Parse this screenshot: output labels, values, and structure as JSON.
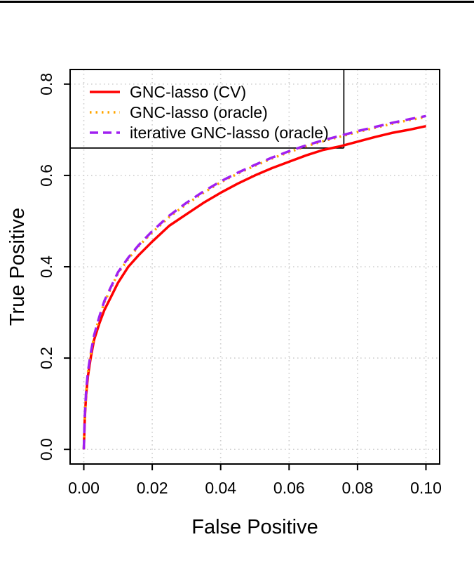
{
  "page": {
    "background": "#ffffff"
  },
  "top_rule": {
    "visible": true,
    "color": "#000000"
  },
  "chart_data": {
    "type": "line",
    "title": "",
    "xlabel": "False Positive",
    "ylabel": "True Positive",
    "xlim": [
      0,
      0.1
    ],
    "ylim": [
      0,
      0.8
    ],
    "x_ticks": {
      "values": [
        0,
        0.02,
        0.04,
        0.06,
        0.08,
        0.1
      ],
      "labels": [
        "0.00",
        "0.02",
        "0.04",
        "0.06",
        "0.08",
        "0.10"
      ]
    },
    "y_ticks": {
      "values": [
        0,
        0.2,
        0.4,
        0.6,
        0.8
      ],
      "labels": [
        "0.0",
        "0.2",
        "0.4",
        "0.6",
        "0.8"
      ]
    },
    "grid": {
      "show": true,
      "color": "#cfcfcf",
      "style": "dotted"
    },
    "axis_color": "#000000",
    "x": [
      0,
      0.0003,
      0.0007,
      0.0012,
      0.002,
      0.003,
      0.0045,
      0.006,
      0.008,
      0.01,
      0.013,
      0.016,
      0.02,
      0.025,
      0.03,
      0.035,
      0.04,
      0.045,
      0.05,
      0.055,
      0.06,
      0.065,
      0.07,
      0.075,
      0.08,
      0.085,
      0.09,
      0.095,
      0.1
    ],
    "series": [
      {
        "name": "GNC-lasso (CV)",
        "color": "#ff0000",
        "dash": "solid",
        "width": 3.5,
        "values": [
          0,
          0.07,
          0.12,
          0.16,
          0.2,
          0.24,
          0.275,
          0.305,
          0.335,
          0.365,
          0.4,
          0.425,
          0.455,
          0.49,
          0.515,
          0.54,
          0.562,
          0.582,
          0.6,
          0.616,
          0.63,
          0.644,
          0.656,
          0.664,
          0.674,
          0.684,
          0.693,
          0.7,
          0.708
        ]
      },
      {
        "name": "GNC-lasso (oracle)",
        "color": "#ffa500",
        "dash": "dotted",
        "width": 3.5,
        "values": [
          0,
          0.073,
          0.128,
          0.168,
          0.208,
          0.248,
          0.288,
          0.322,
          0.354,
          0.386,
          0.417,
          0.445,
          0.475,
          0.509,
          0.537,
          0.562,
          0.585,
          0.604,
          0.621,
          0.637,
          0.651,
          0.664,
          0.675,
          0.685,
          0.695,
          0.704,
          0.713,
          0.721,
          0.728
        ]
      },
      {
        "name": "iterative GNC-lasso (oracle)",
        "color": "#a020f0",
        "dash": "dashed",
        "width": 3.5,
        "values": [
          0,
          0.075,
          0.13,
          0.17,
          0.21,
          0.25,
          0.29,
          0.325,
          0.357,
          0.388,
          0.42,
          0.447,
          0.478,
          0.512,
          0.54,
          0.565,
          0.587,
          0.606,
          0.623,
          0.639,
          0.653,
          0.666,
          0.677,
          0.687,
          0.697,
          0.706,
          0.715,
          0.723,
          0.73
        ]
      }
    ],
    "legend": {
      "position": "top-left",
      "border": "none"
    },
    "threshold_marker": {
      "x": 0.076,
      "y": 0.66,
      "color": "#000000",
      "description": "vertical segment from top plot border down to a horizontal segment that extends from the left plot border"
    }
  }
}
